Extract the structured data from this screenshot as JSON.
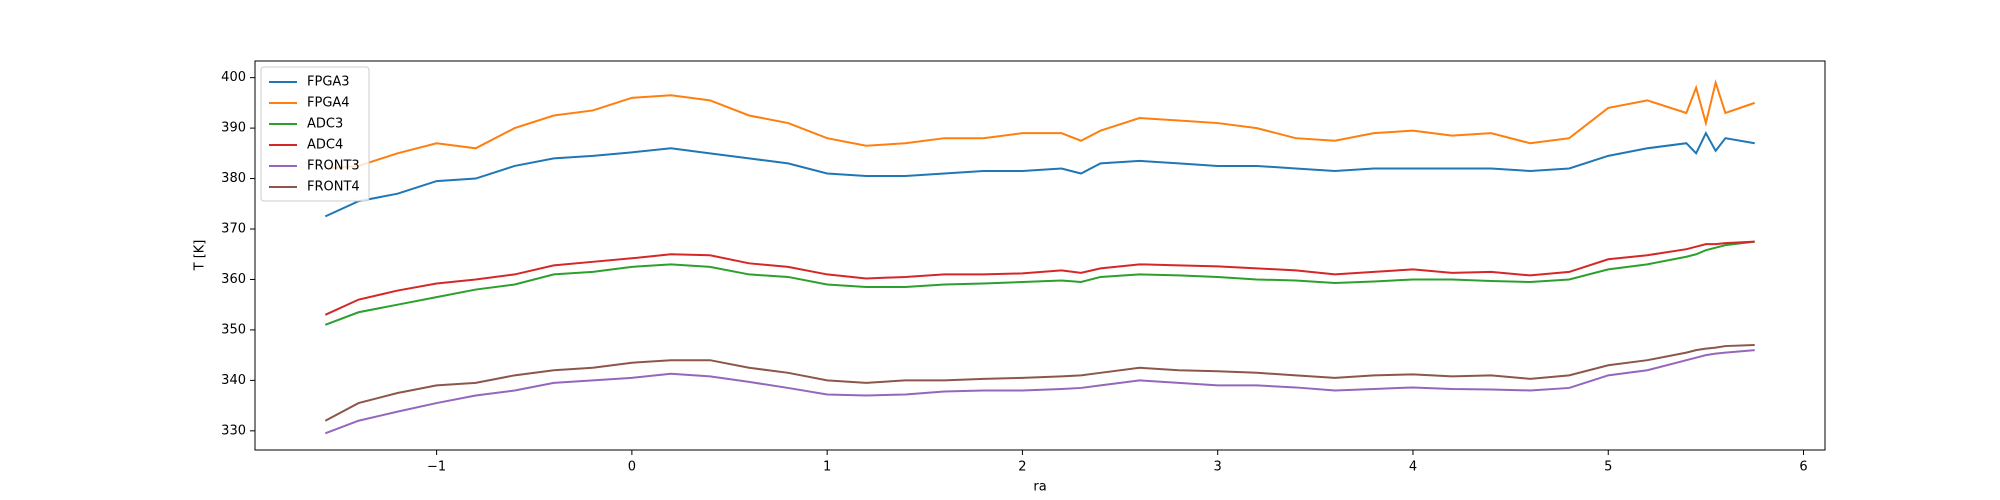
{
  "chart_data": {
    "type": "line",
    "xlabel": "ra",
    "ylabel": "T [K]",
    "x": [
      -1.57,
      -1.4,
      -1.2,
      -1.0,
      -0.8,
      -0.6,
      -0.4,
      -0.2,
      0,
      0.2,
      0.4,
      0.6,
      0.8,
      1.0,
      1.2,
      1.4,
      1.6,
      1.8,
      2.0,
      2.2,
      2.3,
      2.4,
      2.6,
      2.8,
      3.0,
      3.2,
      3.4,
      3.6,
      3.8,
      4.0,
      4.2,
      4.4,
      4.6,
      4.8,
      5.0,
      5.2,
      5.4,
      5.45,
      5.5,
      5.55,
      5.6,
      5.75
    ],
    "series": [
      {
        "name": "FPGA3",
        "color": "#1f77b4",
        "values": [
          372.5,
          375.5,
          377,
          379.5,
          380,
          382.5,
          384,
          384.5,
          385.2,
          386,
          385,
          384,
          383,
          381,
          380.5,
          380.5,
          381,
          381.5,
          381.5,
          382,
          381,
          383,
          383.5,
          383,
          382.5,
          382.5,
          382,
          381.5,
          382,
          382,
          382,
          382,
          381.5,
          382,
          384.5,
          386,
          387,
          385,
          389,
          385.5,
          388,
          387
        ]
      },
      {
        "name": "FPGA4",
        "color": "#ff7f0e",
        "values": [
          382,
          382.5,
          385,
          387,
          386,
          390,
          392.5,
          393.5,
          396,
          396.5,
          395.5,
          392.5,
          391,
          388,
          386.5,
          387,
          388,
          388,
          389,
          389,
          387.5,
          389.5,
          392,
          391.5,
          391,
          390,
          388,
          387.5,
          389,
          389.5,
          388.5,
          389,
          387,
          388,
          394,
          395.5,
          393,
          398,
          391,
          399,
          393,
          395
        ]
      },
      {
        "name": "ADC3",
        "color": "#2ca02c",
        "values": [
          351,
          353.5,
          355,
          356.5,
          358,
          359,
          361,
          361.5,
          362.5,
          363,
          362.5,
          361,
          360.5,
          359,
          358.5,
          358.5,
          359,
          359.2,
          359.5,
          359.8,
          359.5,
          360.5,
          361,
          360.8,
          360.5,
          360,
          359.8,
          359.3,
          359.6,
          360,
          360,
          359.7,
          359.5,
          360,
          362,
          363,
          364.5,
          365,
          365.8,
          366.3,
          366.8,
          367.5
        ]
      },
      {
        "name": "ADC4",
        "color": "#d62728",
        "values": [
          353,
          356,
          357.8,
          359.2,
          360,
          361,
          362.8,
          363.5,
          364.2,
          365,
          364.8,
          363.2,
          362.5,
          361,
          360.2,
          360.5,
          361,
          361,
          361.2,
          361.8,
          361.3,
          362.2,
          363,
          362.8,
          362.6,
          362.2,
          361.8,
          361,
          361.5,
          362,
          361.3,
          361.5,
          360.8,
          361.5,
          364,
          364.8,
          366,
          366.5,
          367,
          367,
          367.2,
          367.5
        ]
      },
      {
        "name": "FRONT3",
        "color": "#9467bd",
        "values": [
          329.5,
          332,
          333.8,
          335.5,
          337,
          338,
          339.5,
          340,
          340.5,
          341.3,
          340.8,
          339.7,
          338.5,
          337.2,
          337,
          337.2,
          337.8,
          338,
          338,
          338.3,
          338.5,
          339,
          340,
          339.5,
          339,
          339,
          338.6,
          338,
          338.3,
          338.6,
          338.3,
          338.2,
          338,
          338.5,
          341,
          342,
          344,
          344.5,
          345,
          345.3,
          345.5,
          346
        ]
      },
      {
        "name": "FRONT4",
        "color": "#8c564b",
        "values": [
          332,
          335.5,
          337.5,
          339,
          339.5,
          341,
          342,
          342.5,
          343.5,
          344,
          344,
          342.5,
          341.5,
          340,
          339.5,
          340,
          340,
          340.3,
          340.5,
          340.8,
          341,
          341.5,
          342.5,
          342,
          341.8,
          341.5,
          341,
          340.5,
          341,
          341.2,
          340.8,
          341,
          340.3,
          341,
          343,
          344,
          345.5,
          346,
          346.3,
          346.5,
          346.8,
          347
        ]
      }
    ],
    "xlim": [
      -1.93,
      6.11
    ],
    "ylim": [
      326.2,
      403.3
    ],
    "xticks": [
      {
        "value": -1,
        "label": "−1"
      },
      0,
      1,
      2,
      3,
      4,
      5,
      6
    ],
    "yticks": [
      330,
      340,
      350,
      360,
      370,
      380,
      390,
      400
    ],
    "legend": "upper left"
  }
}
